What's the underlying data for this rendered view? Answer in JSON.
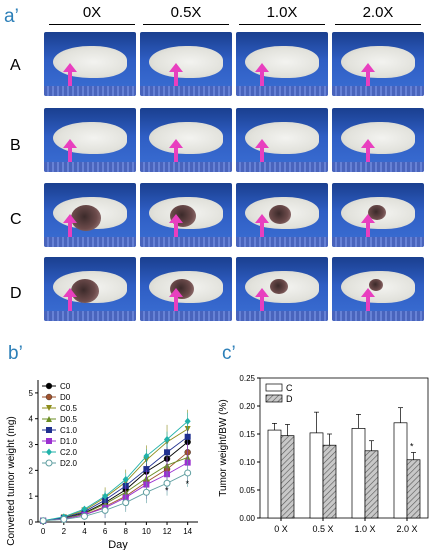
{
  "figure": {
    "panel_a_label": "a’",
    "panel_b_label": "b’",
    "panel_c_label": "c’",
    "columns": [
      "0X",
      "0.5X",
      "1.0X",
      "2.0X"
    ],
    "rows": [
      "A",
      "B",
      "C",
      "D"
    ]
  },
  "chart_data": [
    {
      "type": "line",
      "xlabel": "Day",
      "ylabel": "Converted tumor weight (mg)",
      "x": [
        0,
        2,
        4,
        6,
        8,
        10,
        12,
        14
      ],
      "xlim": [
        -0.5,
        15
      ],
      "ylim": [
        0,
        5.5
      ],
      "xticks": [
        "0",
        "2",
        "4",
        "6",
        "8",
        "10",
        "12",
        "14"
      ],
      "yticks": [
        "0",
        "1",
        "2",
        "3",
        "4",
        "5"
      ],
      "legend_position": "top-left",
      "series": [
        {
          "name": "C0",
          "color": "#000000",
          "marker": "circle-filled",
          "values": [
            0.05,
            0.15,
            0.35,
            0.75,
            1.25,
            1.95,
            2.45,
            3.1
          ]
        },
        {
          "name": "D0",
          "color": "#a0522d",
          "marker": "circle-filled",
          "values": [
            0.05,
            0.12,
            0.28,
            0.6,
            1.0,
            1.55,
            2.05,
            2.7
          ]
        },
        {
          "name": "C0.5",
          "color": "#8c8c1a",
          "marker": "triangle-down",
          "values": [
            0.05,
            0.18,
            0.45,
            0.95,
            1.55,
            2.4,
            3.1,
            3.6
          ]
        },
        {
          "name": "D0.5",
          "color": "#6b8e23",
          "marker": "triangle-up",
          "values": [
            0.05,
            0.14,
            0.32,
            0.7,
            1.15,
            1.7,
            2.2,
            2.5
          ]
        },
        {
          "name": "C1.0",
          "color": "#1f2f8f",
          "marker": "square-filled",
          "values": [
            0.05,
            0.16,
            0.4,
            0.85,
            1.4,
            2.05,
            2.7,
            3.3
          ]
        },
        {
          "name": "D1.0",
          "color": "#9b30d0",
          "marker": "square-filled",
          "values": [
            0.05,
            0.12,
            0.28,
            0.55,
            0.95,
            1.45,
            1.85,
            2.3
          ]
        },
        {
          "name": "C2.0",
          "color": "#20b2aa",
          "marker": "diamond-filled",
          "values": [
            0.05,
            0.2,
            0.5,
            1.0,
            1.65,
            2.55,
            3.2,
            3.9
          ]
        },
        {
          "name": "D2.0",
          "color": "#5f9ea0",
          "marker": "circle-open",
          "values": [
            0.05,
            0.1,
            0.22,
            0.45,
            0.75,
            1.15,
            1.5,
            1.9
          ]
        }
      ],
      "annotations": [
        "*",
        "*"
      ]
    },
    {
      "type": "bar",
      "ylabel": "Tumor weight/BW (%)",
      "categories": [
        "0 X",
        "0.5 X",
        "1.0 X",
        "2.0 X"
      ],
      "ylim": [
        0,
        0.25
      ],
      "yticks": [
        "0.00",
        "0.05",
        "0.10",
        "0.15",
        "0.20",
        "0.25"
      ],
      "legend_position": "top-left",
      "series": [
        {
          "name": "C",
          "fill": "#ffffff",
          "values": [
            0.157,
            0.152,
            0.16,
            0.17
          ],
          "errors": [
            0.012,
            0.037,
            0.025,
            0.027
          ]
        },
        {
          "name": "D",
          "fill": "hatched",
          "values": [
            0.147,
            0.13,
            0.12,
            0.104
          ],
          "errors": [
            0.02,
            0.02,
            0.018,
            0.013
          ]
        }
      ],
      "annotations": [
        "*"
      ]
    }
  ]
}
